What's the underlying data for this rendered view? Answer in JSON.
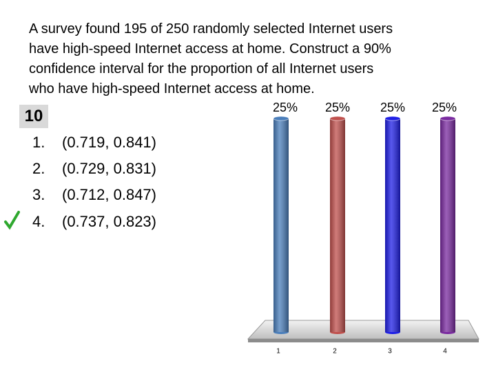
{
  "question": [
    "A survey found 195 of 250 randomly selected Internet users",
    "have high-speed Internet access at home. Construct a 90%",
    "confidence interval for the proportion of all Internet users",
    "who have high-speed Internet access at home."
  ],
  "countdown": "10",
  "options": [
    {
      "number": "1.",
      "text": "(0.719, 0.841)"
    },
    {
      "number": "2.",
      "text": "(0.729, 0.831)"
    },
    {
      "number": "3.",
      "text": "(0.712, 0.847)"
    },
    {
      "number": "4.",
      "text": "(0.737, 0.823)"
    }
  ],
  "chart_data": {
    "type": "bar",
    "categories": [
      "1",
      "2",
      "3",
      "4"
    ],
    "values": [
      25,
      25,
      25,
      25
    ],
    "value_labels": [
      "25%",
      "25%",
      "25%",
      "25%"
    ],
    "colors": [
      "#4a7ebb",
      "#c0504d",
      "#1f1fe6",
      "#7a2aa0"
    ]
  }
}
